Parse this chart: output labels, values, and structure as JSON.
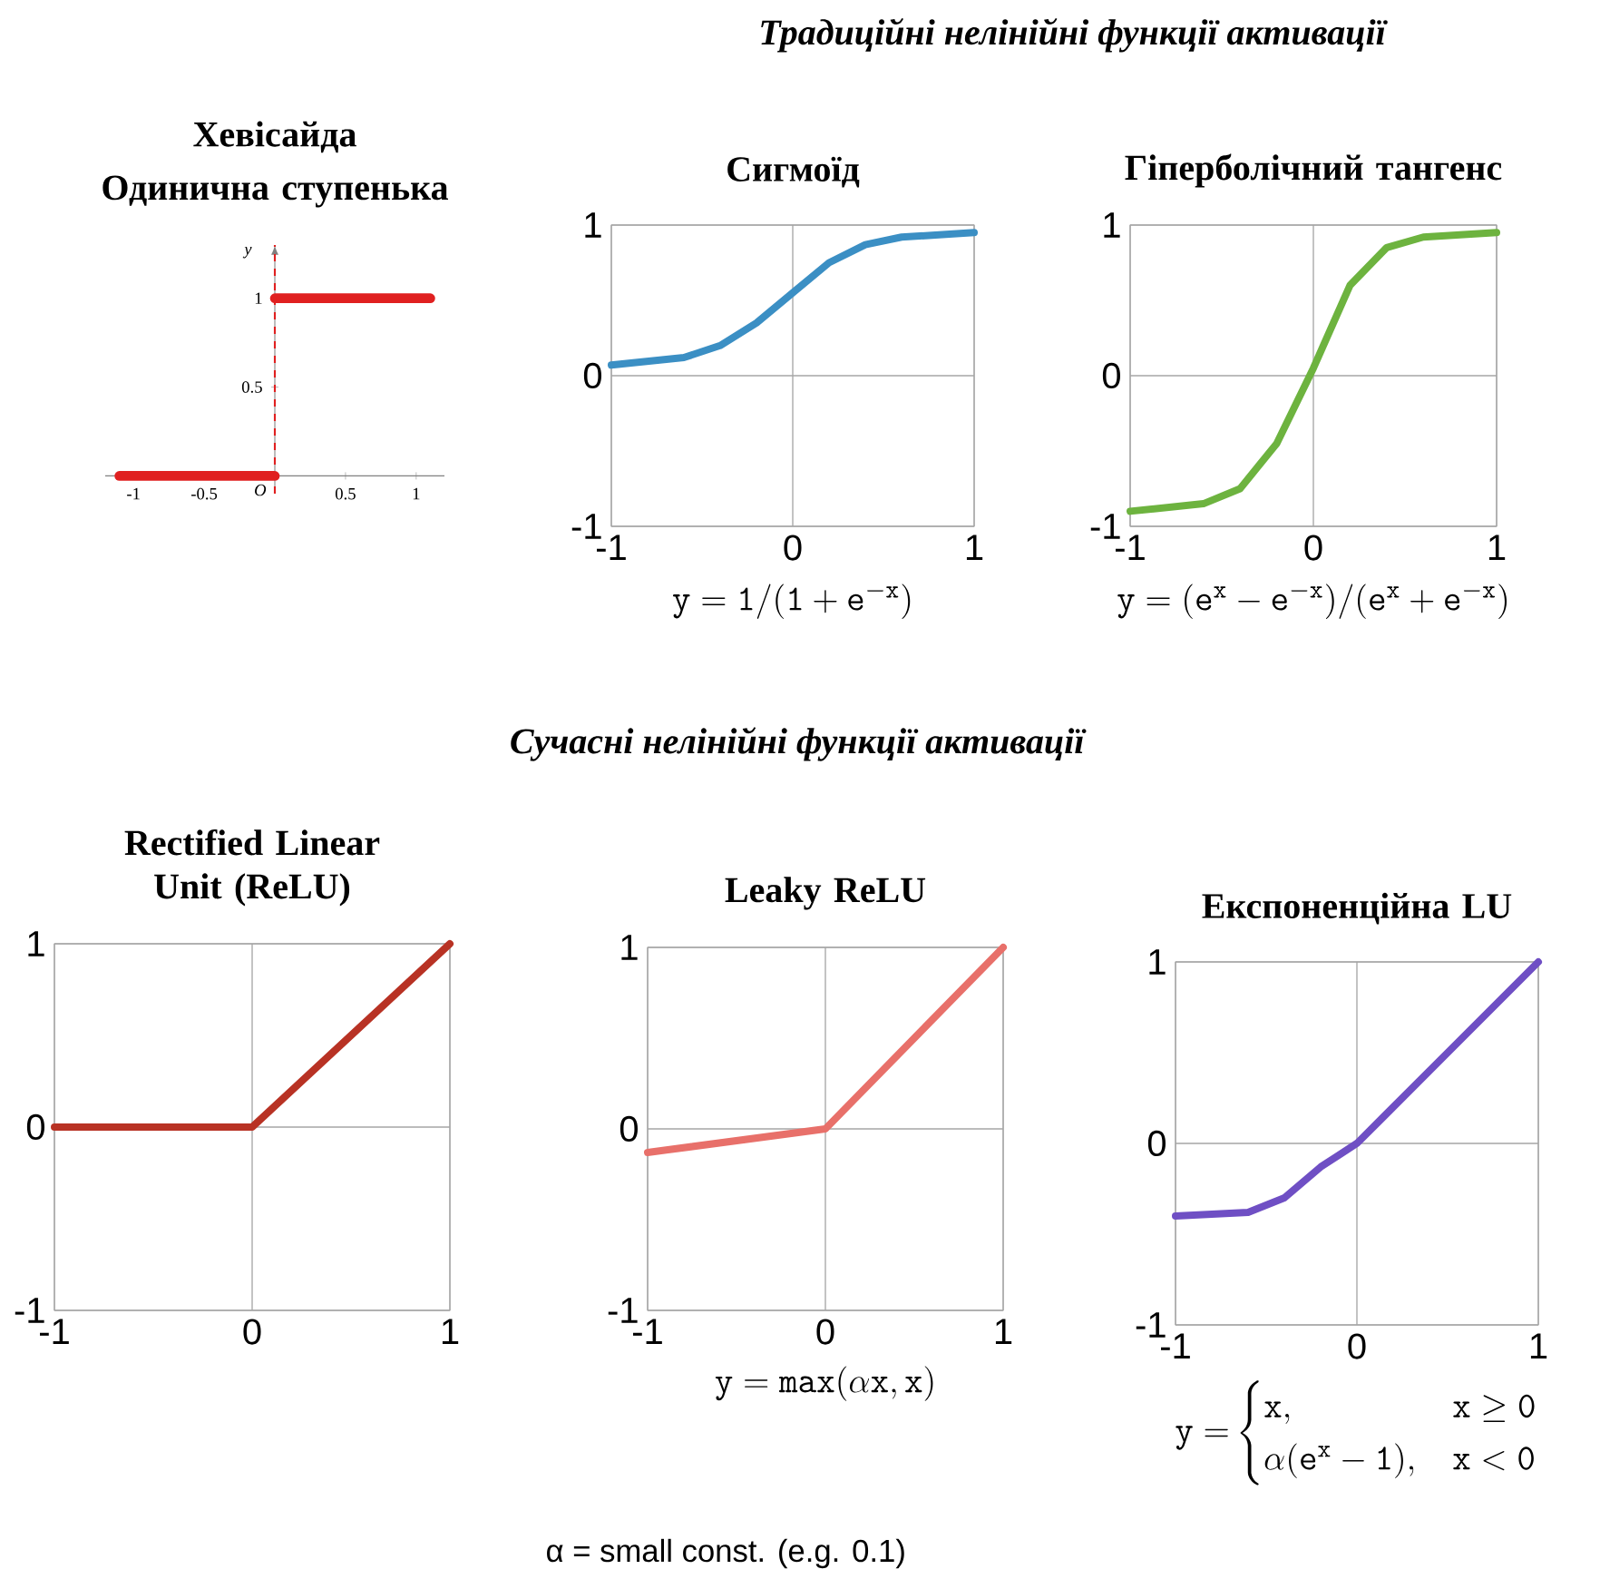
{
  "chart_data": [
    {
      "type": "line",
      "title": "Хевісайда",
      "subtitle": "Одинична ступенька",
      "ylabel": "y",
      "xlim": [
        -1.2,
        1.2
      ],
      "ylim": [
        -0.1,
        1.3
      ],
      "xticks": [
        -1,
        -0.5,
        0.5,
        1
      ],
      "yticks": [
        0.5,
        1
      ],
      "series": [
        {
          "color": "#e02020",
          "x": [
            -1.1,
            0
          ],
          "values": [
            0,
            0
          ]
        },
        {
          "color": "#e02020",
          "x": [
            0,
            1.1
          ],
          "values": [
            1,
            1
          ]
        }
      ],
      "ref_lines": [
        {
          "axis": "x",
          "value": 0,
          "color": "#e02020",
          "line_style": "dashed"
        }
      ],
      "annotations": [
        {
          "text": "O",
          "x": 0,
          "y": 0
        }
      ]
    },
    {
      "type": "line",
      "title": "Сигмоїд",
      "xlabel": "\\mathtt{y=1/(1+e^{-x})}",
      "xlim": [
        -1,
        1
      ],
      "ylim": [
        -1,
        1
      ],
      "xticks": [
        -1,
        0,
        1
      ],
      "yticks": [
        -1,
        0,
        1
      ],
      "grid": true,
      "series": [
        {
          "color": "#3b8fc4",
          "x": [
            -1,
            -0.6,
            -0.4,
            -0.2,
            0,
            0.2,
            0.4,
            0.6,
            1
          ],
          "values": [
            0.07,
            0.12,
            0.2,
            0.35,
            0.55,
            0.75,
            0.87,
            0.92,
            0.95
          ]
        }
      ],
      "annotations": [
        "Традиційні нелінійні функції активації"
      ]
    },
    {
      "type": "line",
      "title": "Гіперболічний тангенс",
      "xlabel": "\\mathtt{y=(e^{x}-e^{-x})/(e^{x}+e^{-x})}",
      "xlim": [
        -1,
        1
      ],
      "ylim": [
        -1,
        1
      ],
      "xticks": [
        -1,
        0,
        1
      ],
      "yticks": [
        -1,
        0,
        1
      ],
      "grid": true,
      "series": [
        {
          "color": "#6db33f",
          "x": [
            -1,
            -0.6,
            -0.4,
            -0.2,
            0,
            0.2,
            0.4,
            0.6,
            1
          ],
          "values": [
            -0.9,
            -0.85,
            -0.75,
            -0.45,
            0.05,
            0.6,
            0.85,
            0.92,
            0.95
          ]
        }
      ]
    },
    {
      "type": "line",
      "title": "Rectified Linear Unit (ReLU)",
      "xlim": [
        -1,
        1
      ],
      "ylim": [
        -1,
        1
      ],
      "xticks": [
        -1,
        0,
        1
      ],
      "yticks": [
        -1,
        0,
        1
      ],
      "grid": true,
      "series": [
        {
          "color": "#b83224",
          "x": [
            -1,
            0,
            1
          ],
          "values": [
            0,
            0,
            1
          ]
        }
      ]
    },
    {
      "type": "line",
      "title": "Leaky ReLU",
      "xlabel": "\\mathtt{y=max(\\alpha x,x)}",
      "xlim": [
        -1,
        1
      ],
      "ylim": [
        -1,
        1
      ],
      "xticks": [
        -1,
        0,
        1
      ],
      "yticks": [
        -1,
        0,
        1
      ],
      "grid": true,
      "series": [
        {
          "color": "#e8706a",
          "x": [
            -1,
            0,
            1
          ],
          "values": [
            -0.13,
            0,
            1
          ]
        }
      ],
      "annotations": [
        "Сучасні нелінійні функції активації",
        "α = small const. (e.g. 0.1)"
      ]
    },
    {
      "type": "line",
      "title": "Експоненційна LU",
      "xlabel": "\\mathtt{y=}\\begin{cases}\\mathtt{x,} & \\mathtt{x\\geq 0}\\\\ \\mathtt{\\alpha(e^{x}-1),} & \\mathtt{x<0}\\end{cases}",
      "xlim": [
        -1,
        1
      ],
      "ylim": [
        -1,
        1
      ],
      "xticks": [
        -1,
        0,
        1
      ],
      "yticks": [
        -1,
        0,
        1
      ],
      "grid": true,
      "series": [
        {
          "color": "#6f4fc4",
          "x": [
            -1,
            -0.6,
            -0.4,
            -0.2,
            0,
            0.5,
            1
          ],
          "values": [
            -0.4,
            -0.38,
            -0.3,
            -0.13,
            0,
            0.5,
            1
          ]
        }
      ]
    }
  ]
}
